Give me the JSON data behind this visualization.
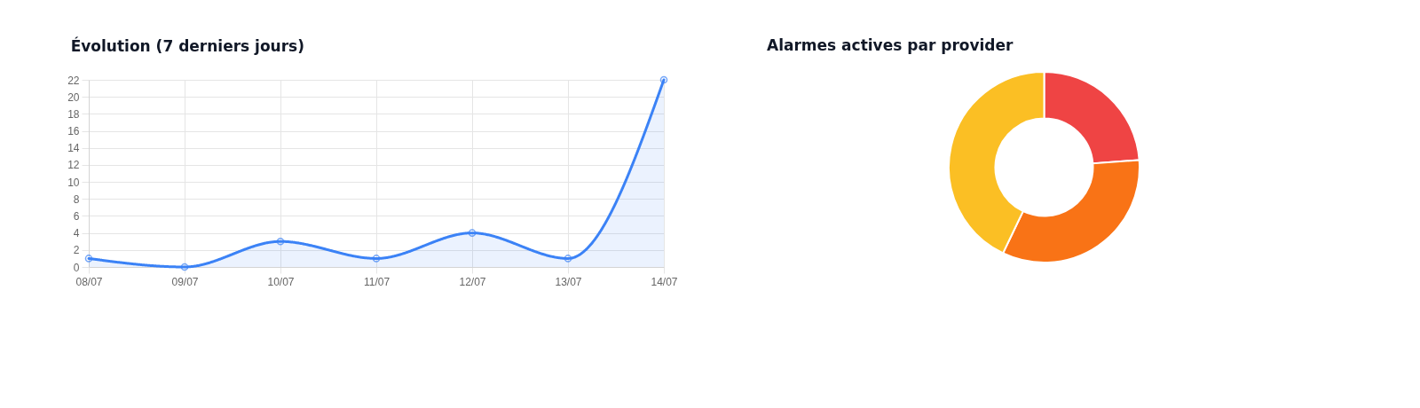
{
  "chart_data": [
    {
      "type": "area",
      "title": "Évolution (7 derniers jours)",
      "categories": [
        "08/07",
        "09/07",
        "10/07",
        "11/07",
        "12/07",
        "13/07",
        "14/07"
      ],
      "values": [
        1,
        0,
        3,
        1,
        4,
        1,
        22
      ],
      "color": "#3b82f6",
      "ylim": [
        0,
        22
      ],
      "yticks": [
        0,
        2,
        4,
        6,
        8,
        10,
        12,
        14,
        16,
        18,
        20,
        22
      ],
      "grid": true,
      "marker": "circle"
    },
    {
      "type": "donut",
      "title": "Alarmes actives par provider",
      "categories": [
        null,
        null,
        null
      ],
      "values": [
        23.8,
        33.3,
        42.9
      ],
      "colors": [
        "#ef4444",
        "#f97316",
        "#fbbf24"
      ]
    }
  ]
}
